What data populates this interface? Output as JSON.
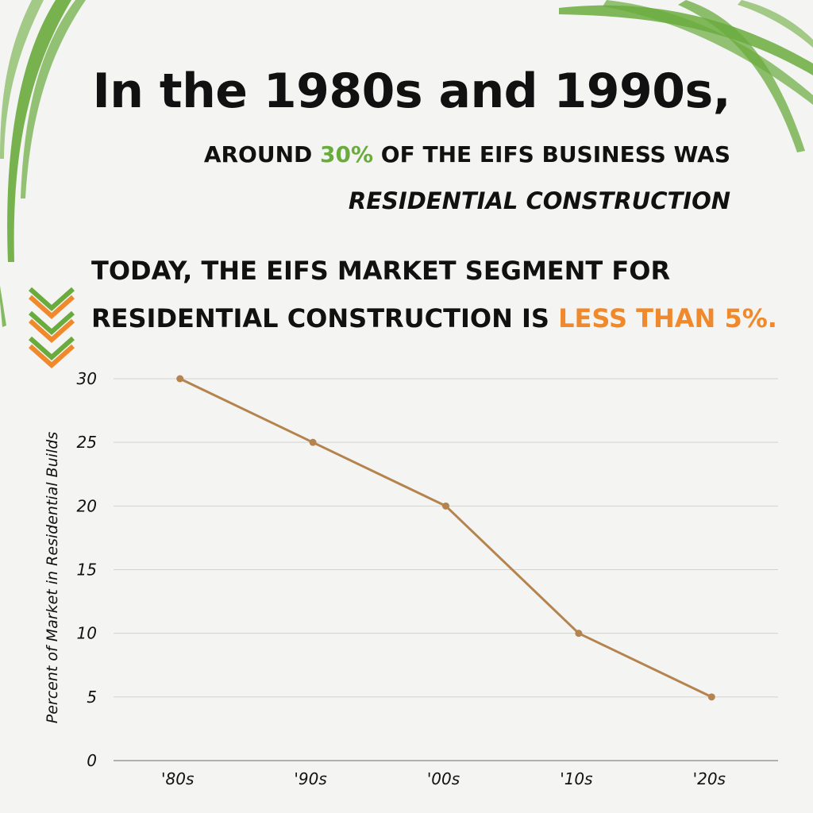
{
  "headline": "In the 1980s and 1990s,",
  "subheading": {
    "prefix": "AROUND ",
    "highlight": "30%",
    "suffix": " OF THE EIFS BUSINESS WAS",
    "line2": "RESIDENTIAL CONSTRUCTION"
  },
  "today": {
    "line1": "TODAY, THE EIFS MARKET SEGMENT FOR",
    "line2_prefix": "RESIDENTIAL CONSTRUCTION IS ",
    "line2_highlight": "LESS THAN 5%."
  },
  "colors": {
    "accent_green": "#6aab3d",
    "accent_orange": "#f0892b",
    "line": "#b5844e",
    "background": "#f4f4f3"
  },
  "decor": {
    "brush_icon": "green-brush-stroke",
    "chevron_icon": "chevron-down-icon"
  },
  "chart_data": {
    "type": "line",
    "categories": [
      "'80s",
      "'90s",
      "'00s",
      "'10s",
      "'20s"
    ],
    "values": [
      30,
      25,
      20,
      10,
      5
    ],
    "ylabel": "Percent of Market in Residential Builds",
    "xlabel": "",
    "ylim": [
      0,
      30
    ],
    "yticks": [
      0,
      5,
      10,
      15,
      20,
      25,
      30
    ],
    "grid": true
  }
}
